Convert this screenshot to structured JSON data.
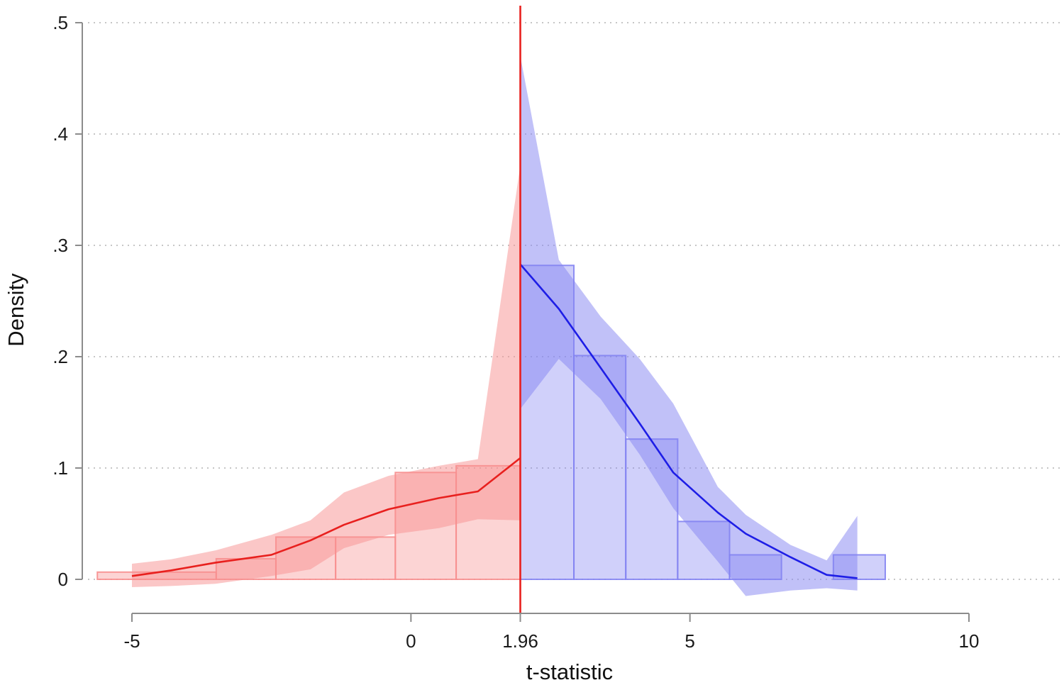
{
  "chart_data": {
    "type": "area",
    "title": "",
    "xlabel": "t-statistic",
    "ylabel": "Density",
    "xlim": [
      -5,
      10
    ],
    "ylim": [
      0,
      0.5
    ],
    "x_ticks": [
      {
        "value": -5,
        "label": "-5"
      },
      {
        "value": 0,
        "label": "0"
      },
      {
        "value": 1.96,
        "label": "1.96"
      },
      {
        "value": 5,
        "label": "5"
      },
      {
        "value": 10,
        "label": "10"
      }
    ],
    "y_ticks": [
      {
        "value": 0,
        "label": "0"
      },
      {
        "value": 0.1,
        "label": ".1"
      },
      {
        "value": 0.2,
        "label": ".2"
      },
      {
        "value": 0.3,
        "label": ".3"
      },
      {
        "value": 0.4,
        "label": ".4"
      },
      {
        "value": 0.5,
        "label": ".5"
      }
    ],
    "grid": "horizontal dotted",
    "threshold": {
      "x": 1.96,
      "color": "#e8201e"
    },
    "series": [
      {
        "side": "below",
        "color": "#e8201e",
        "band_color": "#f78f8f",
        "histogram": [
          {
            "x0": -5.62,
            "x1": -3.49,
            "value": 0.0065
          },
          {
            "x0": -3.49,
            "x1": -2.42,
            "value": 0.0185
          },
          {
            "x0": -2.42,
            "x1": -1.35,
            "value": 0.038
          },
          {
            "x0": -1.35,
            "x1": -0.28,
            "value": 0.038
          },
          {
            "x0": -0.28,
            "x1": 0.81,
            "value": 0.096
          },
          {
            "x0": 0.81,
            "x1": 1.96,
            "value": 0.102
          }
        ],
        "density": [
          {
            "x": -5.0,
            "y": 0.003,
            "lo": -0.007,
            "hi": 0.014
          },
          {
            "x": -4.3,
            "y": 0.008,
            "lo": -0.006,
            "hi": 0.018
          },
          {
            "x": -3.5,
            "y": 0.015,
            "lo": -0.004,
            "hi": 0.026
          },
          {
            "x": -2.5,
            "y": 0.022,
            "lo": 0.003,
            "hi": 0.04
          },
          {
            "x": -1.8,
            "y": 0.035,
            "lo": 0.009,
            "hi": 0.053
          },
          {
            "x": -1.2,
            "y": 0.049,
            "lo": 0.028,
            "hi": 0.078
          },
          {
            "x": -0.4,
            "y": 0.063,
            "lo": 0.04,
            "hi": 0.093
          },
          {
            "x": 0.5,
            "y": 0.073,
            "lo": 0.046,
            "hi": 0.102
          },
          {
            "x": 1.2,
            "y": 0.079,
            "lo": 0.054,
            "hi": 0.108
          },
          {
            "x": 1.96,
            "y": 0.109,
            "lo": 0.053,
            "hi": 0.372
          }
        ]
      },
      {
        "side": "above",
        "color": "#1e1ee6",
        "band_color": "#8484f2",
        "histogram": [
          {
            "x0": 1.96,
            "x1": 2.92,
            "value": 0.282
          },
          {
            "x0": 2.92,
            "x1": 3.85,
            "value": 0.201
          },
          {
            "x0": 3.85,
            "x1": 4.78,
            "value": 0.126
          },
          {
            "x0": 4.78,
            "x1": 5.71,
            "value": 0.052
          },
          {
            "x0": 5.71,
            "x1": 6.64,
            "value": 0.022
          },
          {
            "x0": 7.57,
            "x1": 8.5,
            "value": 0.022
          }
        ],
        "density": [
          {
            "x": 1.96,
            "y": 0.283,
            "lo": 0.153,
            "hi": 0.47
          },
          {
            "x": 2.65,
            "y": 0.243,
            "lo": 0.198,
            "hi": 0.287
          },
          {
            "x": 3.4,
            "y": 0.19,
            "lo": 0.162,
            "hi": 0.236
          },
          {
            "x": 4.1,
            "y": 0.14,
            "lo": 0.112,
            "hi": 0.198
          },
          {
            "x": 4.7,
            "y": 0.096,
            "lo": 0.064,
            "hi": 0.158
          },
          {
            "x": 5.5,
            "y": 0.06,
            "lo": 0.016,
            "hi": 0.083
          },
          {
            "x": 6.0,
            "y": 0.041,
            "lo": -0.015,
            "hi": 0.058
          },
          {
            "x": 6.8,
            "y": 0.02,
            "lo": -0.01,
            "hi": 0.031
          },
          {
            "x": 7.45,
            "y": 0.004,
            "lo": -0.008,
            "hi": 0.017
          },
          {
            "x": 8.0,
            "y": 0.001,
            "lo": -0.01,
            "hi": 0.057
          }
        ]
      }
    ]
  }
}
